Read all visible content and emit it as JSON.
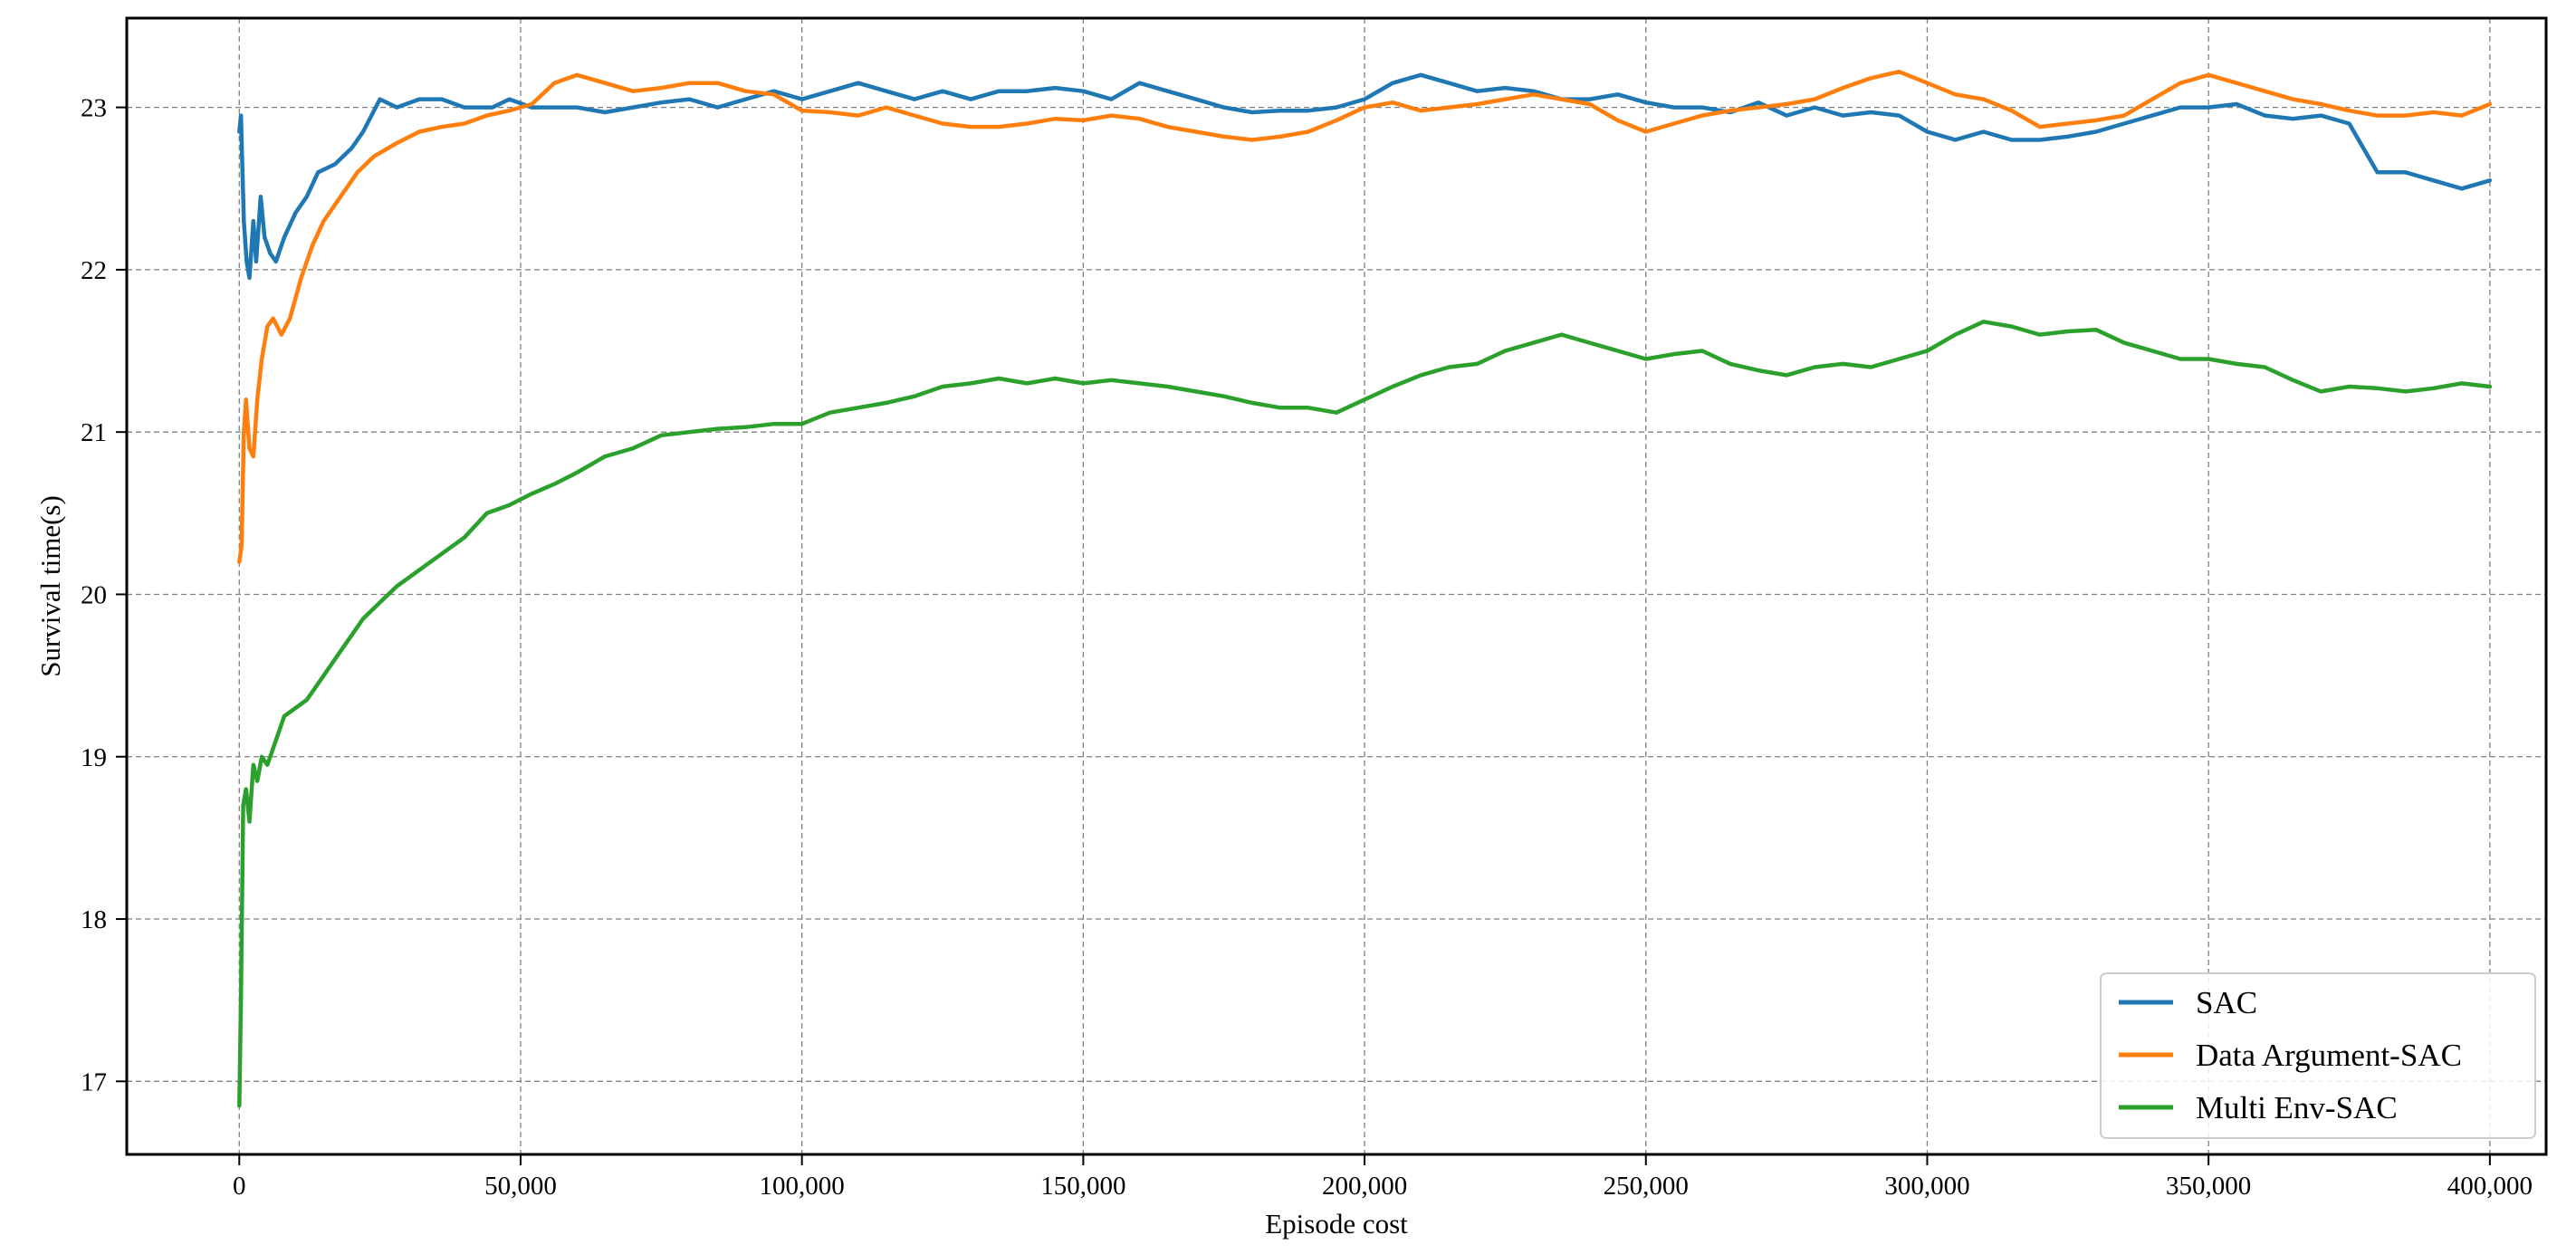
{
  "chart_data": {
    "type": "line",
    "title": "",
    "xlabel": "Episode cost",
    "ylabel": "Survival time(s)",
    "xlim": [
      -20000,
      410000
    ],
    "ylim": [
      16.55,
      23.55
    ],
    "xticks": [
      0,
      50000,
      100000,
      150000,
      200000,
      250000,
      300000,
      350000,
      400000
    ],
    "xtick_labels": [
      "0",
      "50,000",
      "100,000",
      "150,000",
      "200,000",
      "250,000",
      "300,000",
      "350,000",
      "400,000"
    ],
    "yticks": [
      17,
      18,
      19,
      20,
      21,
      22,
      23
    ],
    "ytick_labels": [
      "17",
      "18",
      "19",
      "20",
      "21",
      "22",
      "23"
    ],
    "grid": true,
    "legend": {
      "position": "lower-right",
      "entries": [
        "SAC",
        "Data Argument-SAC",
        "Multi Env-SAC"
      ]
    },
    "series": [
      {
        "name": "SAC",
        "color": "#1f77b4",
        "points": [
          [
            0,
            22.85
          ],
          [
            300,
            22.95
          ],
          [
            800,
            22.3
          ],
          [
            1300,
            22.05
          ],
          [
            1800,
            21.95
          ],
          [
            2500,
            22.3
          ],
          [
            3000,
            22.05
          ],
          [
            3800,
            22.45
          ],
          [
            4500,
            22.2
          ],
          [
            5500,
            22.1
          ],
          [
            6500,
            22.05
          ],
          [
            8000,
            22.2
          ],
          [
            10000,
            22.35
          ],
          [
            12000,
            22.45
          ],
          [
            14000,
            22.6
          ],
          [
            17000,
            22.65
          ],
          [
            20000,
            22.75
          ],
          [
            22000,
            22.85
          ],
          [
            25000,
            23.05
          ],
          [
            28000,
            23.0
          ],
          [
            32000,
            23.05
          ],
          [
            36000,
            23.05
          ],
          [
            40000,
            23.0
          ],
          [
            45000,
            23.0
          ],
          [
            48000,
            23.05
          ],
          [
            52000,
            23.0
          ],
          [
            56000,
            23.0
          ],
          [
            60000,
            23.0
          ],
          [
            65000,
            22.97
          ],
          [
            70000,
            23.0
          ],
          [
            75000,
            23.03
          ],
          [
            80000,
            23.05
          ],
          [
            85000,
            23.0
          ],
          [
            90000,
            23.05
          ],
          [
            95000,
            23.1
          ],
          [
            100000,
            23.05
          ],
          [
            105000,
            23.1
          ],
          [
            110000,
            23.15
          ],
          [
            115000,
            23.1
          ],
          [
            120000,
            23.05
          ],
          [
            125000,
            23.1
          ],
          [
            130000,
            23.05
          ],
          [
            135000,
            23.1
          ],
          [
            140000,
            23.1
          ],
          [
            145000,
            23.12
          ],
          [
            150000,
            23.1
          ],
          [
            155000,
            23.05
          ],
          [
            160000,
            23.15
          ],
          [
            165000,
            23.1
          ],
          [
            170000,
            23.05
          ],
          [
            175000,
            23.0
          ],
          [
            180000,
            22.97
          ],
          [
            185000,
            22.98
          ],
          [
            190000,
            22.98
          ],
          [
            195000,
            23.0
          ],
          [
            200000,
            23.05
          ],
          [
            205000,
            23.15
          ],
          [
            210000,
            23.2
          ],
          [
            215000,
            23.15
          ],
          [
            220000,
            23.1
          ],
          [
            225000,
            23.12
          ],
          [
            230000,
            23.1
          ],
          [
            235000,
            23.05
          ],
          [
            240000,
            23.05
          ],
          [
            245000,
            23.08
          ],
          [
            250000,
            23.03
          ],
          [
            255000,
            23.0
          ],
          [
            260000,
            23.0
          ],
          [
            265000,
            22.97
          ],
          [
            270000,
            23.03
          ],
          [
            275000,
            22.95
          ],
          [
            280000,
            23.0
          ],
          [
            285000,
            22.95
          ],
          [
            290000,
            22.97
          ],
          [
            295000,
            22.95
          ],
          [
            300000,
            22.85
          ],
          [
            305000,
            22.8
          ],
          [
            310000,
            22.85
          ],
          [
            315000,
            22.8
          ],
          [
            320000,
            22.8
          ],
          [
            325000,
            22.82
          ],
          [
            330000,
            22.85
          ],
          [
            335000,
            22.9
          ],
          [
            340000,
            22.95
          ],
          [
            345000,
            23.0
          ],
          [
            350000,
            23.0
          ],
          [
            355000,
            23.02
          ],
          [
            360000,
            22.95
          ],
          [
            365000,
            22.93
          ],
          [
            370000,
            22.95
          ],
          [
            375000,
            22.9
          ],
          [
            380000,
            22.6
          ],
          [
            385000,
            22.6
          ],
          [
            390000,
            22.55
          ],
          [
            395000,
            22.5
          ],
          [
            400000,
            22.55
          ]
        ]
      },
      {
        "name": "Data Argument-SAC",
        "color": "#ff7f0e",
        "points": [
          [
            0,
            20.2
          ],
          [
            400,
            20.3
          ],
          [
            800,
            21.0
          ],
          [
            1200,
            21.2
          ],
          [
            1800,
            20.9
          ],
          [
            2500,
            20.85
          ],
          [
            3200,
            21.2
          ],
          [
            4000,
            21.45
          ],
          [
            5000,
            21.65
          ],
          [
            6000,
            21.7
          ],
          [
            7500,
            21.6
          ],
          [
            9000,
            21.7
          ],
          [
            11000,
            21.95
          ],
          [
            13000,
            22.15
          ],
          [
            15000,
            22.3
          ],
          [
            18000,
            22.45
          ],
          [
            21000,
            22.6
          ],
          [
            24000,
            22.7
          ],
          [
            28000,
            22.78
          ],
          [
            32000,
            22.85
          ],
          [
            36000,
            22.88
          ],
          [
            40000,
            22.9
          ],
          [
            44000,
            22.95
          ],
          [
            48000,
            22.98
          ],
          [
            52000,
            23.02
          ],
          [
            56000,
            23.15
          ],
          [
            60000,
            23.2
          ],
          [
            65000,
            23.15
          ],
          [
            70000,
            23.1
          ],
          [
            75000,
            23.12
          ],
          [
            80000,
            23.15
          ],
          [
            85000,
            23.15
          ],
          [
            90000,
            23.1
          ],
          [
            95000,
            23.08
          ],
          [
            100000,
            22.98
          ],
          [
            105000,
            22.97
          ],
          [
            110000,
            22.95
          ],
          [
            115000,
            23.0
          ],
          [
            120000,
            22.95
          ],
          [
            125000,
            22.9
          ],
          [
            130000,
            22.88
          ],
          [
            135000,
            22.88
          ],
          [
            140000,
            22.9
          ],
          [
            145000,
            22.93
          ],
          [
            150000,
            22.92
          ],
          [
            155000,
            22.95
          ],
          [
            160000,
            22.93
          ],
          [
            165000,
            22.88
          ],
          [
            170000,
            22.85
          ],
          [
            175000,
            22.82
          ],
          [
            180000,
            22.8
          ],
          [
            185000,
            22.82
          ],
          [
            190000,
            22.85
          ],
          [
            195000,
            22.92
          ],
          [
            200000,
            23.0
          ],
          [
            205000,
            23.03
          ],
          [
            210000,
            22.98
          ],
          [
            215000,
            23.0
          ],
          [
            220000,
            23.02
          ],
          [
            225000,
            23.05
          ],
          [
            230000,
            23.08
          ],
          [
            235000,
            23.05
          ],
          [
            240000,
            23.02
          ],
          [
            245000,
            22.92
          ],
          [
            250000,
            22.85
          ],
          [
            255000,
            22.9
          ],
          [
            260000,
            22.95
          ],
          [
            265000,
            22.98
          ],
          [
            270000,
            23.0
          ],
          [
            275000,
            23.02
          ],
          [
            280000,
            23.05
          ],
          [
            285000,
            23.12
          ],
          [
            290000,
            23.18
          ],
          [
            295000,
            23.22
          ],
          [
            300000,
            23.15
          ],
          [
            305000,
            23.08
          ],
          [
            310000,
            23.05
          ],
          [
            315000,
            22.98
          ],
          [
            320000,
            22.88
          ],
          [
            325000,
            22.9
          ],
          [
            330000,
            22.92
          ],
          [
            335000,
            22.95
          ],
          [
            340000,
            23.05
          ],
          [
            345000,
            23.15
          ],
          [
            350000,
            23.2
          ],
          [
            355000,
            23.15
          ],
          [
            360000,
            23.1
          ],
          [
            365000,
            23.05
          ],
          [
            370000,
            23.02
          ],
          [
            375000,
            22.98
          ],
          [
            380000,
            22.95
          ],
          [
            385000,
            22.95
          ],
          [
            390000,
            22.97
          ],
          [
            395000,
            22.95
          ],
          [
            400000,
            23.02
          ]
        ]
      },
      {
        "name": "Multi Env-SAC",
        "color": "#2ca02c",
        "points": [
          [
            0,
            16.85
          ],
          [
            300,
            17.5
          ],
          [
            700,
            18.7
          ],
          [
            1200,
            18.8
          ],
          [
            1800,
            18.6
          ],
          [
            2500,
            18.95
          ],
          [
            3200,
            18.85
          ],
          [
            4000,
            19.0
          ],
          [
            5000,
            18.95
          ],
          [
            6500,
            19.1
          ],
          [
            8000,
            19.25
          ],
          [
            10000,
            19.3
          ],
          [
            12000,
            19.35
          ],
          [
            14000,
            19.45
          ],
          [
            16000,
            19.55
          ],
          [
            18000,
            19.65
          ],
          [
            20000,
            19.75
          ],
          [
            22000,
            19.85
          ],
          [
            25000,
            19.95
          ],
          [
            28000,
            20.05
          ],
          [
            32000,
            20.15
          ],
          [
            36000,
            20.25
          ],
          [
            40000,
            20.35
          ],
          [
            44000,
            20.5
          ],
          [
            48000,
            20.55
          ],
          [
            52000,
            20.62
          ],
          [
            56000,
            20.68
          ],
          [
            60000,
            20.75
          ],
          [
            65000,
            20.85
          ],
          [
            70000,
            20.9
          ],
          [
            75000,
            20.98
          ],
          [
            80000,
            21.0
          ],
          [
            85000,
            21.02
          ],
          [
            90000,
            21.03
          ],
          [
            95000,
            21.05
          ],
          [
            100000,
            21.05
          ],
          [
            105000,
            21.12
          ],
          [
            110000,
            21.15
          ],
          [
            115000,
            21.18
          ],
          [
            120000,
            21.22
          ],
          [
            125000,
            21.28
          ],
          [
            130000,
            21.3
          ],
          [
            135000,
            21.33
          ],
          [
            140000,
            21.3
          ],
          [
            145000,
            21.33
          ],
          [
            150000,
            21.3
          ],
          [
            155000,
            21.32
          ],
          [
            160000,
            21.3
          ],
          [
            165000,
            21.28
          ],
          [
            170000,
            21.25
          ],
          [
            175000,
            21.22
          ],
          [
            180000,
            21.18
          ],
          [
            185000,
            21.15
          ],
          [
            190000,
            21.15
          ],
          [
            195000,
            21.12
          ],
          [
            200000,
            21.2
          ],
          [
            205000,
            21.28
          ],
          [
            210000,
            21.35
          ],
          [
            215000,
            21.4
          ],
          [
            220000,
            21.42
          ],
          [
            225000,
            21.5
          ],
          [
            230000,
            21.55
          ],
          [
            235000,
            21.6
          ],
          [
            240000,
            21.55
          ],
          [
            245000,
            21.5
          ],
          [
            250000,
            21.45
          ],
          [
            255000,
            21.48
          ],
          [
            260000,
            21.5
          ],
          [
            265000,
            21.42
          ],
          [
            270000,
            21.38
          ],
          [
            275000,
            21.35
          ],
          [
            280000,
            21.4
          ],
          [
            285000,
            21.42
          ],
          [
            290000,
            21.4
          ],
          [
            295000,
            21.45
          ],
          [
            300000,
            21.5
          ],
          [
            305000,
            21.6
          ],
          [
            310000,
            21.68
          ],
          [
            315000,
            21.65
          ],
          [
            320000,
            21.6
          ],
          [
            325000,
            21.62
          ],
          [
            330000,
            21.63
          ],
          [
            335000,
            21.55
          ],
          [
            340000,
            21.5
          ],
          [
            345000,
            21.45
          ],
          [
            350000,
            21.45
          ],
          [
            355000,
            21.42
          ],
          [
            360000,
            21.4
          ],
          [
            365000,
            21.32
          ],
          [
            370000,
            21.25
          ],
          [
            375000,
            21.28
          ],
          [
            380000,
            21.27
          ],
          [
            385000,
            21.25
          ],
          [
            390000,
            21.27
          ],
          [
            395000,
            21.3
          ],
          [
            400000,
            21.28
          ]
        ]
      }
    ]
  }
}
